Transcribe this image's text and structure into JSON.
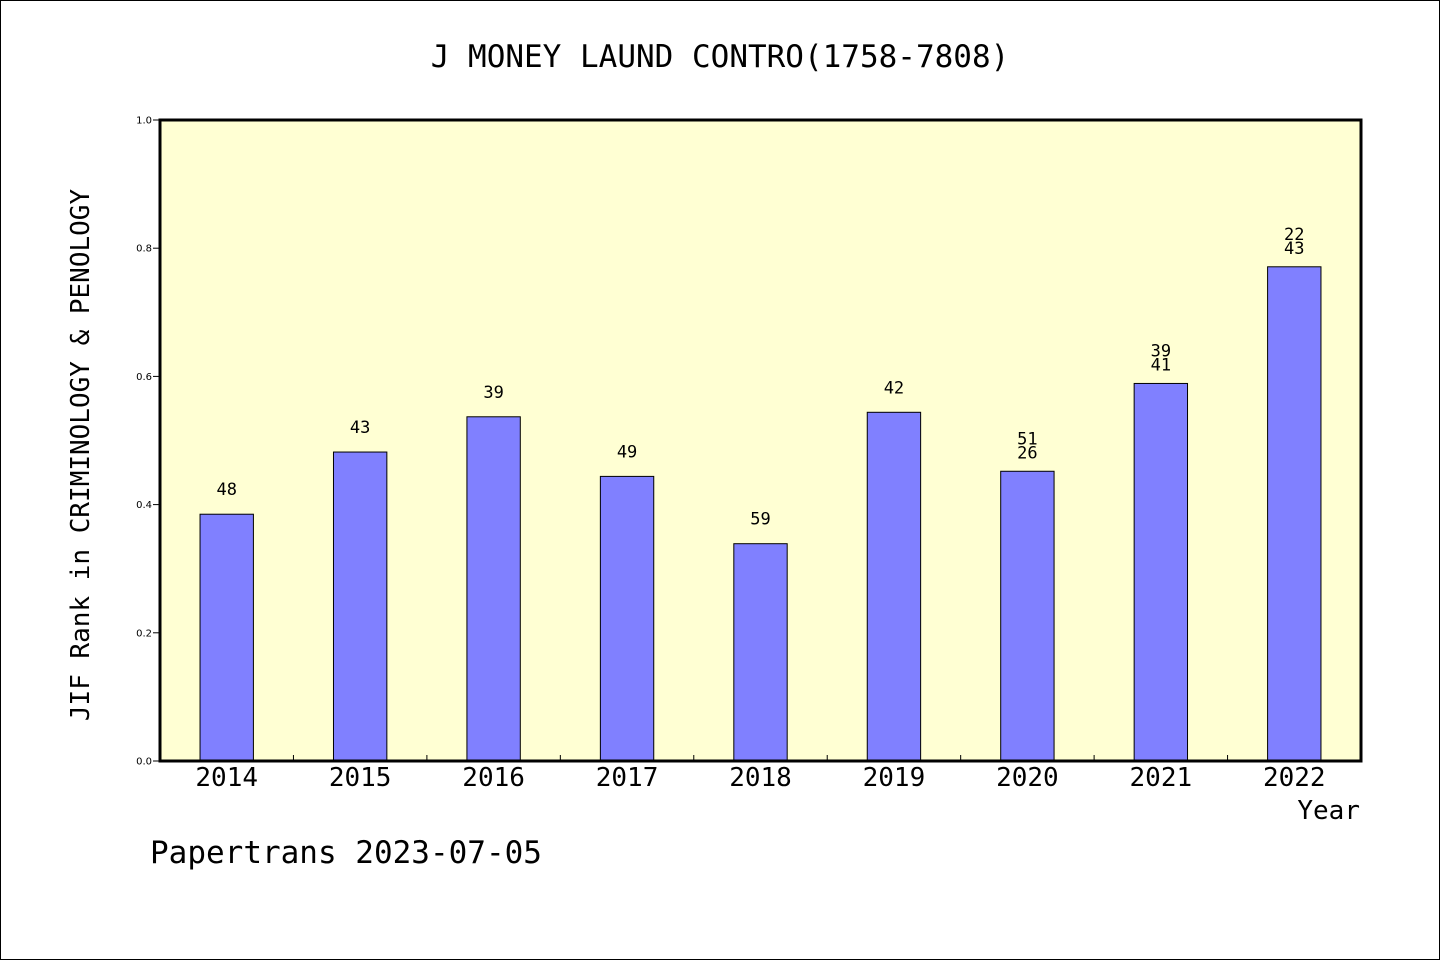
{
  "chart_data": {
    "type": "bar",
    "title": "J MONEY LAUND CONTRO(1758-7808)",
    "xlabel": "Year",
    "ylabel": "JIF Rank in CRIMINOLOGY & PENOLOGY",
    "ylim": [
      0,
      1.0
    ],
    "yticks": [
      "0.0",
      "0.2",
      "0.4",
      "0.6",
      "0.8",
      "1.0"
    ],
    "categories": [
      "2014",
      "2015",
      "2016",
      "2017",
      "2018",
      "2019",
      "2020",
      "2021",
      "2022"
    ],
    "values": [
      0.385,
      0.482,
      0.537,
      0.444,
      0.339,
      0.544,
      0.452,
      0.589,
      0.771
    ],
    "labels": [
      [
        "48"
      ],
      [
        "43"
      ],
      [
        "39"
      ],
      [
        "49"
      ],
      [
        "59"
      ],
      [
        "42"
      ],
      [
        "51",
        "26"
      ],
      [
        "39",
        "41"
      ],
      [
        "22",
        "43"
      ]
    ],
    "grid": false,
    "colors": {
      "bar": "#8080ff",
      "plot_bg": "#ffffd3",
      "edge": "#000000"
    }
  },
  "footer": "Papertrans 2023-07-05"
}
